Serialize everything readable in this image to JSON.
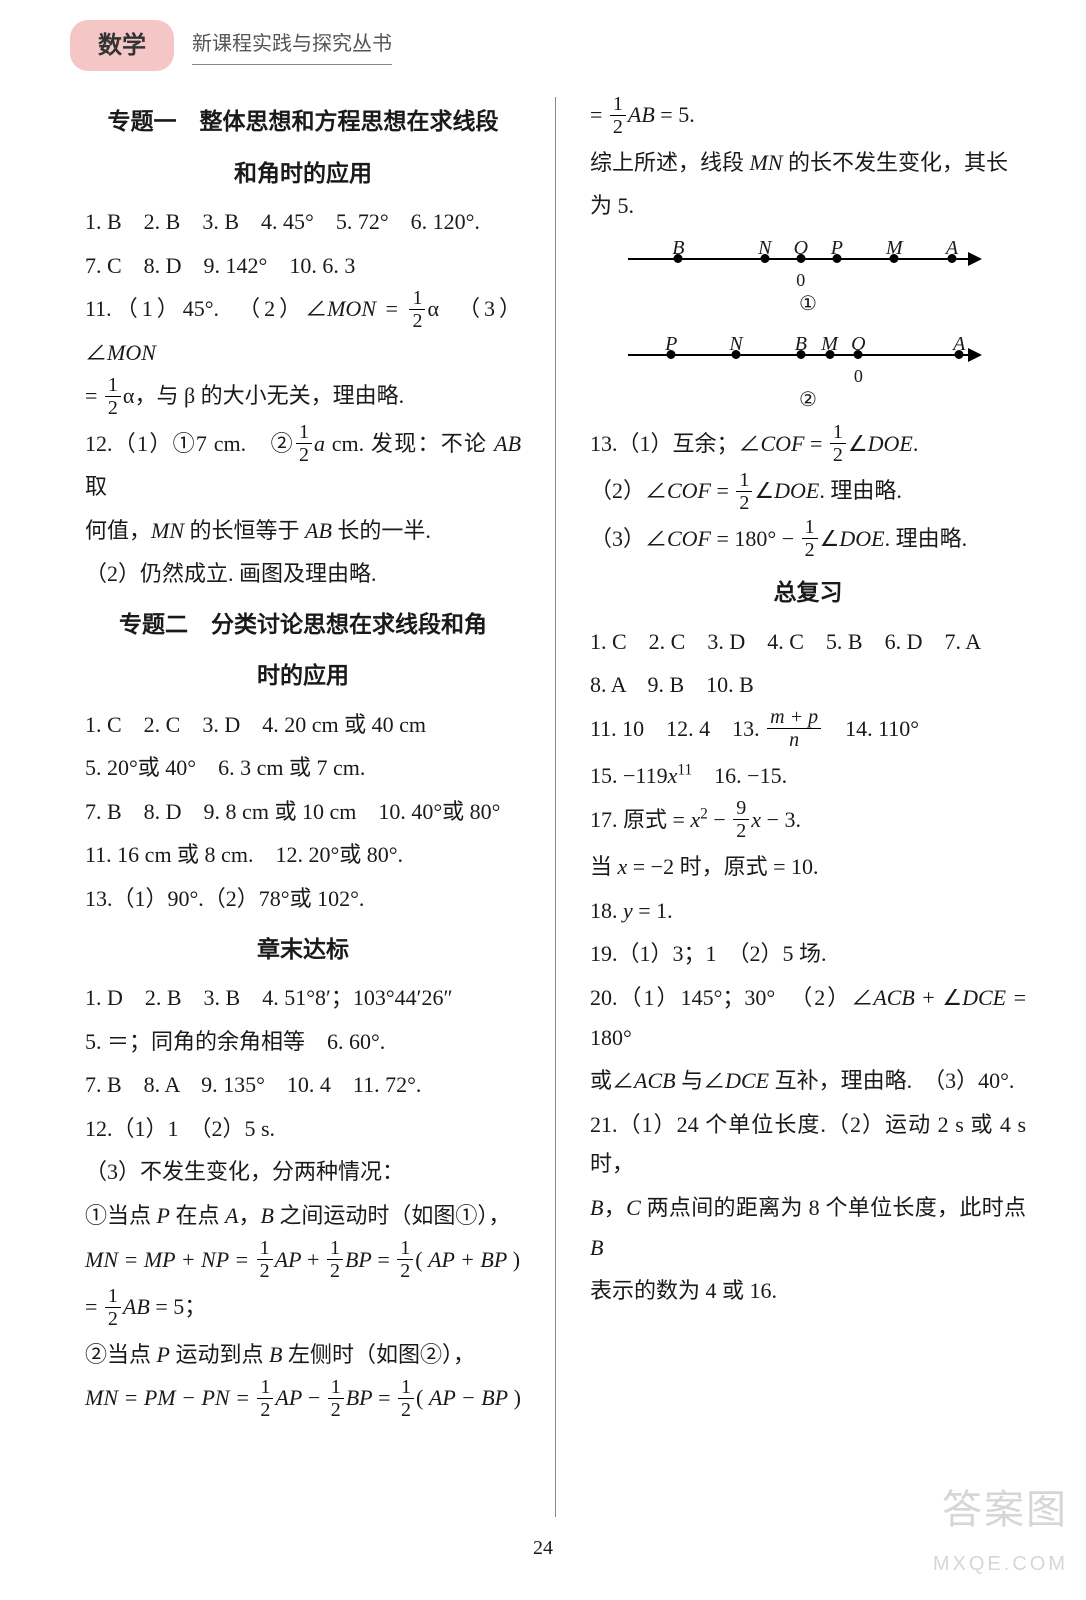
{
  "header": {
    "subject": "数学",
    "series": "新课程实践与探究丛书"
  },
  "page_number": "24",
  "watermark": {
    "line1": "答案图",
    "line2": "MXQE.COM"
  },
  "left": {
    "topic1_title_l1": "专题一　整体思想和方程思想在求线段",
    "topic1_title_l2": "和角时的应用",
    "t1_l1": "1. B　2. B　3. B　4. 45°　5. 72°　6. 120°.",
    "t1_l2": "7. C　8. D　9. 142°　10. 6. 3",
    "t1_l3a": "11.（1）45°.　（2）∠",
    "t1_l3_mon1": "MON",
    "t1_l3b": " = ",
    "t1_l3_half_num": "1",
    "t1_l3_half_den": "2",
    "t1_l3c": "α　（3）∠",
    "t1_l3_mon2": "MON",
    "t1_l4a": " = ",
    "t1_l4_half_num": "1",
    "t1_l4_half_den": "2",
    "t1_l4b": "α，与 β 的大小无关，理由略.",
    "t1_l5a": "12.（1）①7 cm.　②",
    "t1_l5_half_num": "1",
    "t1_l5_half_den": "2",
    "t1_l5b": "a",
    "t1_l5c": " cm. 发现：不论 ",
    "t1_l5_ab": "AB",
    "t1_l5d": " 取",
    "t1_l6a": "何值，",
    "t1_l6_mn": "MN",
    "t1_l6b": " 的长恒等于 ",
    "t1_l6_ab": "AB",
    "t1_l6c": " 长的一半.",
    "t1_l7": "（2）仍然成立. 画图及理由略.",
    "topic2_title_l1": "专题二　分类讨论思想在求线段和角",
    "topic2_title_l2": "时的应用",
    "t2_l1": "1. C　2. C　3. D　4. 20 cm 或 40 cm",
    "t2_l2": "5. 20°或 40°　6. 3 cm 或 7 cm.",
    "t2_l3": "7. B　8. D　9. 8 cm 或 10 cm　10. 40°或 80°",
    "t2_l4": "11. 16 cm 或 8 cm.　12. 20°或 80°.",
    "t2_l5": "13.（1）90°.（2）78°或 102°.",
    "chapter_title": "章末达标",
    "c_l1": "1. D　2. B　3. B　4. 51°8′；103°44′26″",
    "c_l2": "5. ＝；同角的余角相等　6. 60°.",
    "c_l3": "7. B　8. A　9. 135°　10. 4　11. 72°.",
    "c_l4": "12.（1）1　（2）5 s.",
    "c_l5": "（3）不发生变化，分两种情况：",
    "c_l6a": "①当点 ",
    "c_l6_p": "P",
    "c_l6b": " 在点 ",
    "c_l6_a": "A",
    "c_l6c": "，",
    "c_l6_b2": "B",
    "c_l6d": " 之间运动时（如图①），",
    "c_eq1_lhs": "MN = MP + NP = ",
    "c_eq1_h1n": "1",
    "c_eq1_h1d": "2",
    "c_eq1_ap": "AP",
    "c_eq1_plus": " + ",
    "c_eq1_h2n": "1",
    "c_eq1_h2d": "2",
    "c_eq1_bp": "BP",
    "c_eq1_eq": " = ",
    "c_eq1_h3n": "1",
    "c_eq1_h3d": "2",
    "c_eq1_open": "( ",
    "c_eq1_apbp": "AP + BP",
    "c_eq1_close": " )",
    "c_eq1b_a": " = ",
    "c_eq1b_hn": "1",
    "c_eq1b_hd": "2",
    "c_eq1b_ab": "AB",
    "c_eq1b_b": " = 5；",
    "c_l9a": "②当点 ",
    "c_l9_p": "P",
    "c_l9b": " 运动到点 ",
    "c_l9_b2": "B",
    "c_l9c": " 左侧时（如图②），",
    "c_eq2_lhs": "MN = PM − PN = ",
    "c_eq2_h1n": "1",
    "c_eq2_h1d": "2",
    "c_eq2_ap": "AP",
    "c_eq2_minus": " − ",
    "c_eq2_h2n": "1",
    "c_eq2_h2d": "2",
    "c_eq2_bp": "BP",
    "c_eq2_eq": " = ",
    "c_eq2_h3n": "1",
    "c_eq2_h3d": "2",
    "c_eq2_open": "( ",
    "c_eq2_apbp": "AP − BP",
    "c_eq2_close": " )"
  },
  "right": {
    "r_l1a": " = ",
    "r_l1_hn": "1",
    "r_l1_hd": "2",
    "r_l1_ab": "AB",
    "r_l1b": " = 5.",
    "r_l2a": "综上所述，线段 ",
    "r_l2_mn": "MN",
    "r_l2b": " 的长不发生变化，其长",
    "r_l3": "为 5.",
    "diagram1": {
      "labels": [
        "B",
        "N",
        "O",
        "P",
        "M",
        "A"
      ],
      "positions_pct": [
        14,
        38,
        48,
        58,
        74,
        90
      ],
      "zero_at": 48,
      "caption": "①"
    },
    "diagram2": {
      "labels": [
        "P",
        "N",
        "B",
        "M",
        "O",
        "A"
      ],
      "positions_pct": [
        12,
        30,
        48,
        56,
        64,
        92
      ],
      "zero_at": 64,
      "caption": "②"
    },
    "r13_l1a": "13.（1）互余；∠",
    "r13_l1_cof": "COF",
    "r13_l1b": " = ",
    "r13_l1_hn": "1",
    "r13_l1_hd": "2",
    "r13_l1c": "∠",
    "r13_l1_doe": "DOE",
    "r13_l1d": ".",
    "r13_l2a": "（2）∠",
    "r13_l2_cof": "COF",
    "r13_l2b": " = ",
    "r13_l2_hn": "1",
    "r13_l2_hd": "2",
    "r13_l2c": "∠",
    "r13_l2_doe": "DOE",
    "r13_l2d": ". 理由略.",
    "r13_l3a": "（3）∠",
    "r13_l3_cof": "COF",
    "r13_l3b": " = 180° − ",
    "r13_l3_hn": "1",
    "r13_l3_hd": "2",
    "r13_l3c": "∠",
    "r13_l3_doe": "DOE",
    "r13_l3d": ". 理由略.",
    "review_title": "总复习",
    "rv_l1": "1. C　2. C　3. D　4. C　5. B　6. D　7. A",
    "rv_l2": "8. A　9. B　10. B",
    "rv_l3a": "11. 10　12. 4　13. ",
    "rv_l3_num": "m + p",
    "rv_l3_den": "n",
    "rv_l3b": "　14. 110°",
    "rv_l4a": "15. −119",
    "rv_l4_x": "x",
    "rv_l4_exp": "11",
    "rv_l4b": "　16. −15.",
    "rv_l5a": "17. 原式 = ",
    "rv_l5_x2": "x",
    "rv_l5_exp2": "2",
    "rv_l5b": " − ",
    "rv_l5_hn": "9",
    "rv_l5_hd": "2",
    "rv_l5_x": "x",
    "rv_l5c": " − 3.",
    "rv_l6a": "当 ",
    "rv_l6_x": "x",
    "rv_l6b": " = −2 时，原式 = 10.",
    "rv_l7a": "18. ",
    "rv_l7_y": "y",
    "rv_l7b": " = 1.",
    "rv_l8": "19.（1）3；1　（2）5 场.",
    "rv_l9a": "20.（1）145°；30°　（2）∠",
    "rv_l9_acb": "ACB",
    "rv_l9b": " + ∠",
    "rv_l9_dce": "DCE",
    "rv_l9c": " = 180°",
    "rv_l10a": "或∠",
    "rv_l10_acb": "ACB",
    "rv_l10b": " 与∠",
    "rv_l10_dce": "DCE",
    "rv_l10c": " 互补，理由略.　（3）40°.",
    "rv_l11": "21.（1）24 个单位长度.（2）运动 2 s 或 4 s 时，",
    "rv_l12a": "B",
    "rv_l12b": "，",
    "rv_l12c": "C",
    "rv_l12d": " 两点间的距离为 8 个单位长度，此时点 ",
    "rv_l12e": "B",
    "rv_l13": "表示的数为 4 或 16."
  }
}
